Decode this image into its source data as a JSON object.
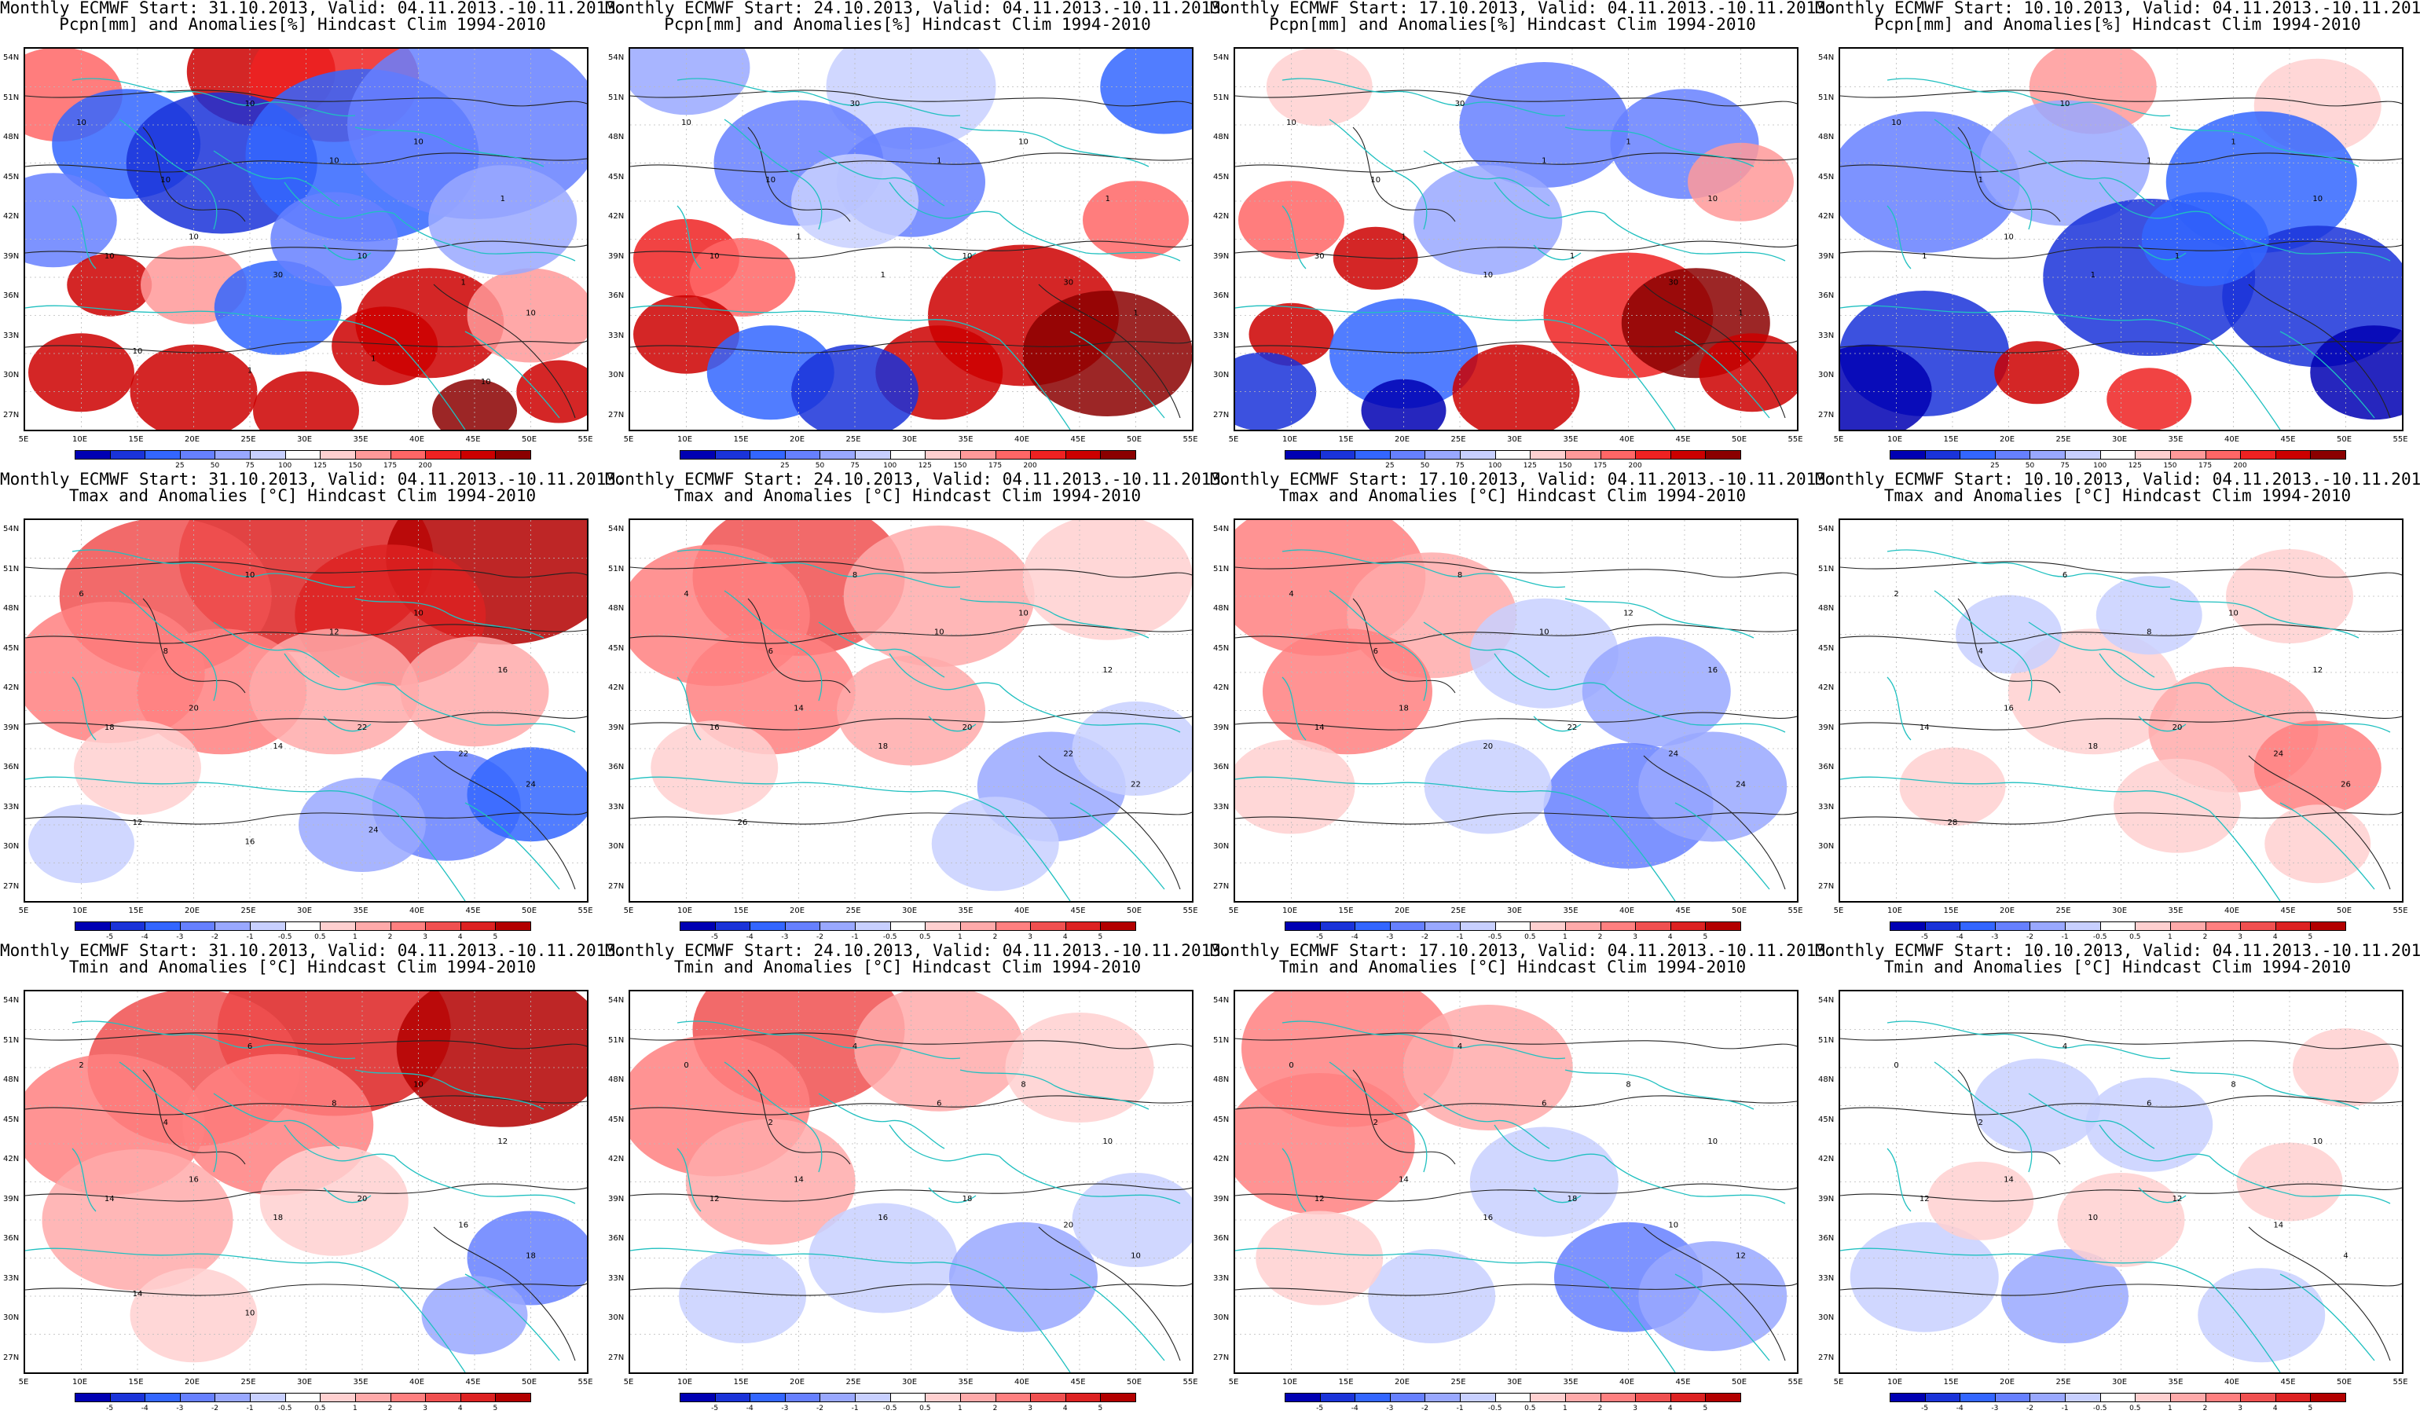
{
  "rows": [
    {
      "variable": "Pcpn[mm] and Anomalies[%] Hindcast Clim 1994-2010",
      "type": "precip",
      "colorbar": {
        "colors": [
          "#0000b3",
          "#1a33d9",
          "#3366ff",
          "#6680ff",
          "#99a8ff",
          "#c8d0ff",
          "#ffffff",
          "#ffd0d0",
          "#ff9999",
          "#ff6666",
          "#ee2222",
          "#cc0000",
          "#8b0000"
        ],
        "labels": [
          "25",
          "50",
          "75",
          "100",
          "125",
          "150",
          "175",
          "200"
        ]
      }
    },
    {
      "variable": "Tmax and Anomalies [°C] Hindcast Clim 1994-2010",
      "type": "tmax",
      "colorbar": {
        "colors": [
          "#0000b3",
          "#1a33d9",
          "#3366ff",
          "#6680ff",
          "#99a8ff",
          "#c8d0ff",
          "#ffffff",
          "#ffd0d0",
          "#ffaaaa",
          "#ff8080",
          "#f05050",
          "#dd2222",
          "#b30000"
        ],
        "labels": [
          "-5",
          "-4",
          "-3",
          "-2",
          "-1",
          "-0.5",
          "0.5",
          "1",
          "2",
          "3",
          "4",
          "5"
        ]
      }
    },
    {
      "variable": "Tmin and Anomalies [°C] Hindcast Clim 1994-2010",
      "type": "tmin",
      "colorbar": {
        "colors": [
          "#0000b3",
          "#1a33d9",
          "#3366ff",
          "#6680ff",
          "#99a8ff",
          "#c8d0ff",
          "#ffffff",
          "#ffd0d0",
          "#ffaaaa",
          "#ff8080",
          "#f05050",
          "#dd2222",
          "#b30000"
        ],
        "labels": [
          "-5",
          "-4",
          "-3",
          "-2",
          "-1",
          "-0.5",
          "0.5",
          "1",
          "2",
          "3",
          "4",
          "5"
        ]
      }
    }
  ],
  "columns": [
    {
      "start": "31.10.2013",
      "title_prefix": "Monthly ECMWF Start: 31.10.2013, Valid: 04.11.2013.-10.11.2013."
    },
    {
      "start": "24.10.2013",
      "title_prefix": "Monthly ECMWF Start: 24.10.2013, Valid: 04.11.2013.-10.11.2013."
    },
    {
      "start": "17.10.2013",
      "title_prefix": "Monthly ECMWF Start: 17.10.2013, Valid: 04.11.2013.-10.11.2013."
    },
    {
      "start": "10.10.2013",
      "title_prefix": "Monthly ECMWF Start: 10.10.2013, Valid: 04.11.2013.-10.11.2013."
    }
  ],
  "lat_labels": [
    "54N",
    "51N",
    "48N",
    "45N",
    "42N",
    "39N",
    "36N",
    "33N",
    "30N",
    "27N"
  ],
  "lon_labels": [
    "5E",
    "10E",
    "15E",
    "20E",
    "25E",
    "30E",
    "35E",
    "40E",
    "45E",
    "50E",
    "55E"
  ],
  "panels": [
    [
      {
        "contour_labels": [
          "10",
          "10",
          "10",
          "10",
          "10",
          "1",
          "10",
          "10",
          "30",
          "10",
          "1",
          "10",
          "10",
          "1",
          "1",
          "10"
        ],
        "palette_idx": [
          0
        ]
      },
      {
        "contour_labels": [
          "10",
          "10",
          "30",
          "1",
          "10",
          "1",
          "10",
          "1",
          "1",
          "10",
          "30",
          "1"
        ]
      },
      {
        "contour_labels": [
          "10",
          "10",
          "30",
          "1",
          "1",
          "10",
          "30",
          "1",
          "10",
          "1",
          "30",
          "1"
        ]
      },
      {
        "contour_labels": [
          "10",
          "1",
          "10",
          "1",
          "1",
          "10",
          "1",
          "10",
          "1",
          "1"
        ]
      }
    ],
    [
      {
        "contour_labels": [
          "6",
          "8",
          "10",
          "12",
          "10",
          "16",
          "18",
          "20",
          "14",
          "22",
          "22",
          "24",
          "12",
          "16",
          "24"
        ]
      },
      {
        "contour_labels": [
          "4",
          "6",
          "8",
          "10",
          "10",
          "12",
          "16",
          "14",
          "18",
          "20",
          "22",
          "22",
          "26"
        ]
      },
      {
        "contour_labels": [
          "4",
          "6",
          "8",
          "10",
          "12",
          "16",
          "14",
          "18",
          "20",
          "22",
          "24",
          "24"
        ]
      },
      {
        "contour_labels": [
          "2",
          "4",
          "6",
          "8",
          "10",
          "12",
          "14",
          "16",
          "18",
          "20",
          "24",
          "26",
          "28"
        ]
      }
    ],
    [
      {
        "contour_labels": [
          "2",
          "4",
          "6",
          "8",
          "10",
          "12",
          "14",
          "16",
          "18",
          "20",
          "16",
          "18",
          "14",
          "10"
        ]
      },
      {
        "contour_labels": [
          "0",
          "2",
          "4",
          "6",
          "8",
          "10",
          "12",
          "14",
          "16",
          "18",
          "20",
          "10"
        ]
      },
      {
        "contour_labels": [
          "0",
          "2",
          "4",
          "6",
          "8",
          "10",
          "12",
          "14",
          "16",
          "18",
          "10",
          "12"
        ]
      },
      {
        "contour_labels": [
          "0",
          "2",
          "4",
          "6",
          "8",
          "10",
          "12",
          "14",
          "10",
          "12",
          "14",
          "4"
        ]
      }
    ]
  ],
  "anomaly_fields": {
    "precip": [
      [
        [
          0.06,
          0.12,
          "#ff6666",
          60
        ],
        [
          0.42,
          0.06,
          "#cc0000",
          70
        ],
        [
          0.55,
          0.08,
          "#ee2222",
          80
        ],
        [
          0.18,
          0.25,
          "#3366ff",
          70
        ],
        [
          0.35,
          0.3,
          "#1a33d9",
          90
        ],
        [
          0.6,
          0.28,
          "#3366ff",
          110
        ],
        [
          0.8,
          0.2,
          "#6680ff",
          120
        ],
        [
          0.05,
          0.45,
          "#6680ff",
          60
        ],
        [
          0.15,
          0.62,
          "#cc0000",
          40
        ],
        [
          0.3,
          0.62,
          "#ff9999",
          50
        ],
        [
          0.45,
          0.68,
          "#3366ff",
          60
        ],
        [
          0.72,
          0.72,
          "#cc0000",
          70
        ],
        [
          0.64,
          0.78,
          "#cc0000",
          50
        ],
        [
          0.9,
          0.7,
          "#ff9999",
          60
        ],
        [
          0.1,
          0.85,
          "#cc0000",
          50
        ],
        [
          0.3,
          0.9,
          "#cc0000",
          60
        ],
        [
          0.5,
          0.95,
          "#cc0000",
          50
        ],
        [
          0.8,
          0.95,
          "#8b0000",
          40
        ],
        [
          0.95,
          0.9,
          "#cc0000",
          40
        ],
        [
          0.55,
          0.5,
          "#6680ff",
          60
        ],
        [
          0.85,
          0.45,
          "#99a8ff",
          70
        ]
      ],
      [
        [
          0.1,
          0.05,
          "#99a8ff",
          60
        ],
        [
          0.5,
          0.1,
          "#c8d0ff",
          80
        ],
        [
          0.95,
          0.1,
          "#3366ff",
          60
        ],
        [
          0.3,
          0.3,
          "#6680ff",
          80
        ],
        [
          0.5,
          0.35,
          "#6680ff",
          70
        ],
        [
          0.1,
          0.55,
          "#ee2222",
          50
        ],
        [
          0.2,
          0.6,
          "#ff6666",
          50
        ],
        [
          0.7,
          0.7,
          "#cc0000",
          90
        ],
        [
          0.85,
          0.8,
          "#8b0000",
          80
        ],
        [
          0.55,
          0.85,
          "#cc0000",
          60
        ],
        [
          0.1,
          0.75,
          "#cc0000",
          50
        ],
        [
          0.25,
          0.85,
          "#3366ff",
          60
        ],
        [
          0.4,
          0.9,
          "#1a33d9",
          60
        ],
        [
          0.4,
          0.4,
          "#c8d0ff",
          60
        ],
        [
          0.9,
          0.45,
          "#ff6666",
          50
        ]
      ],
      [
        [
          0.15,
          0.1,
          "#ffd0d0",
          50
        ],
        [
          0.55,
          0.2,
          "#6680ff",
          80
        ],
        [
          0.8,
          0.25,
          "#6680ff",
          70
        ],
        [
          0.1,
          0.45,
          "#ff6666",
          50
        ],
        [
          0.25,
          0.55,
          "#cc0000",
          40
        ],
        [
          0.1,
          0.75,
          "#cc0000",
          40
        ],
        [
          0.3,
          0.8,
          "#3366ff",
          70
        ],
        [
          0.5,
          0.9,
          "#cc0000",
          60
        ],
        [
          0.7,
          0.7,
          "#ee2222",
          80
        ],
        [
          0.82,
          0.72,
          "#8b0000",
          70
        ],
        [
          0.92,
          0.85,
          "#cc0000",
          50
        ],
        [
          0.45,
          0.45,
          "#99a8ff",
          70
        ],
        [
          0.9,
          0.35,
          "#ff9999",
          50
        ],
        [
          0.05,
          0.9,
          "#1a33d9",
          50
        ],
        [
          0.3,
          0.95,
          "#0000b3",
          40
        ]
      ],
      [
        [
          0.45,
          0.1,
          "#ff9999",
          60
        ],
        [
          0.85,
          0.15,
          "#ffd0d0",
          60
        ],
        [
          0.15,
          0.35,
          "#6680ff",
          90
        ],
        [
          0.4,
          0.3,
          "#99a8ff",
          80
        ],
        [
          0.75,
          0.35,
          "#3366ff",
          90
        ],
        [
          0.55,
          0.6,
          "#1a33d9",
          100
        ],
        [
          0.85,
          0.65,
          "#1a33d9",
          90
        ],
        [
          0.15,
          0.8,
          "#1a33d9",
          80
        ],
        [
          0.05,
          0.9,
          "#0000b3",
          60
        ],
        [
          0.35,
          0.85,
          "#cc0000",
          40
        ],
        [
          0.55,
          0.92,
          "#ee2222",
          40
        ],
        [
          0.95,
          0.85,
          "#0000b3",
          60
        ],
        [
          0.65,
          0.5,
          "#3366ff",
          60
        ]
      ]
    ],
    "tmax": [
      [
        [
          0.5,
          0.1,
          "#dd2222",
          120
        ],
        [
          0.85,
          0.1,
          "#b30000",
          110
        ],
        [
          0.25,
          0.2,
          "#f05050",
          100
        ],
        [
          0.65,
          0.25,
          "#dd2222",
          90
        ],
        [
          0.15,
          0.4,
          "#ff8080",
          90
        ],
        [
          0.35,
          0.45,
          "#ff8080",
          80
        ],
        [
          0.55,
          0.45,
          "#ffaaaa",
          80
        ],
        [
          0.8,
          0.45,
          "#ffaaaa",
          70
        ],
        [
          0.75,
          0.75,
          "#6680ff",
          70
        ],
        [
          0.9,
          0.72,
          "#3366ff",
          60
        ],
        [
          0.6,
          0.8,
          "#99a8ff",
          60
        ],
        [
          0.1,
          0.85,
          "#c8d0ff",
          50
        ],
        [
          0.2,
          0.65,
          "#ffd0d0",
          60
        ]
      ],
      [
        [
          0.3,
          0.15,
          "#f05050",
          100
        ],
        [
          0.15,
          0.25,
          "#ff8080",
          90
        ],
        [
          0.55,
          0.2,
          "#ffaaaa",
          90
        ],
        [
          0.85,
          0.15,
          "#ffd0d0",
          80
        ],
        [
          0.25,
          0.45,
          "#ff8080",
          80
        ],
        [
          0.5,
          0.5,
          "#ffaaaa",
          70
        ],
        [
          0.75,
          0.7,
          "#99a8ff",
          70
        ],
        [
          0.9,
          0.6,
          "#c8d0ff",
          60
        ],
        [
          0.65,
          0.85,
          "#c8d0ff",
          60
        ],
        [
          0.15,
          0.65,
          "#ffd0d0",
          60
        ]
      ],
      [
        [
          0.15,
          0.15,
          "#ff8080",
          100
        ],
        [
          0.35,
          0.25,
          "#ffaaaa",
          80
        ],
        [
          0.2,
          0.45,
          "#ff8080",
          80
        ],
        [
          0.55,
          0.35,
          "#c8d0ff",
          70
        ],
        [
          0.75,
          0.45,
          "#99a8ff",
          70
        ],
        [
          0.7,
          0.75,
          "#6680ff",
          80
        ],
        [
          0.85,
          0.7,
          "#99a8ff",
          70
        ],
        [
          0.45,
          0.7,
          "#c8d0ff",
          60
        ],
        [
          0.1,
          0.7,
          "#ffd0d0",
          60
        ]
      ],
      [
        [
          0.45,
          0.45,
          "#ffd0d0",
          80
        ],
        [
          0.7,
          0.55,
          "#ffaaaa",
          80
        ],
        [
          0.85,
          0.65,
          "#ff8080",
          60
        ],
        [
          0.3,
          0.3,
          "#c8d0ff",
          50
        ],
        [
          0.55,
          0.25,
          "#c8d0ff",
          50
        ],
        [
          0.8,
          0.2,
          "#ffd0d0",
          60
        ],
        [
          0.2,
          0.7,
          "#ffd0d0",
          50
        ],
        [
          0.6,
          0.75,
          "#ffd0d0",
          60
        ],
        [
          0.85,
          0.85,
          "#ffd0d0",
          50
        ]
      ]
    ],
    "tmin": [
      [
        [
          0.55,
          0.1,
          "#dd2222",
          110
        ],
        [
          0.85,
          0.15,
          "#b30000",
          100
        ],
        [
          0.3,
          0.2,
          "#f05050",
          100
        ],
        [
          0.15,
          0.35,
          "#ff8080",
          90
        ],
        [
          0.45,
          0.35,
          "#ff8080",
          90
        ],
        [
          0.2,
          0.6,
          "#ffaaaa",
          90
        ],
        [
          0.55,
          0.55,
          "#ffd0d0",
          70
        ],
        [
          0.9,
          0.7,
          "#6680ff",
          60
        ],
        [
          0.8,
          0.85,
          "#99a8ff",
          50
        ],
        [
          0.3,
          0.85,
          "#ffd0d0",
          60
        ]
      ],
      [
        [
          0.3,
          0.1,
          "#f05050",
          100
        ],
        [
          0.15,
          0.3,
          "#ff8080",
          90
        ],
        [
          0.55,
          0.15,
          "#ffaaaa",
          80
        ],
        [
          0.25,
          0.5,
          "#ffaaaa",
          80
        ],
        [
          0.45,
          0.7,
          "#c8d0ff",
          70
        ],
        [
          0.7,
          0.75,
          "#99a8ff",
          70
        ],
        [
          0.9,
          0.6,
          "#c8d0ff",
          60
        ],
        [
          0.2,
          0.8,
          "#c8d0ff",
          60
        ],
        [
          0.8,
          0.2,
          "#ffd0d0",
          70
        ]
      ],
      [
        [
          0.2,
          0.15,
          "#ff8080",
          100
        ],
        [
          0.45,
          0.2,
          "#ffaaaa",
          80
        ],
        [
          0.15,
          0.4,
          "#ff8080",
          90
        ],
        [
          0.55,
          0.5,
          "#c8d0ff",
          70
        ],
        [
          0.7,
          0.75,
          "#6680ff",
          70
        ],
        [
          0.85,
          0.8,
          "#99a8ff",
          70
        ],
        [
          0.35,
          0.8,
          "#c8d0ff",
          60
        ],
        [
          0.15,
          0.7,
          "#ffd0d0",
          60
        ]
      ],
      [
        [
          0.35,
          0.3,
          "#c8d0ff",
          60
        ],
        [
          0.55,
          0.35,
          "#c8d0ff",
          60
        ],
        [
          0.15,
          0.75,
          "#c8d0ff",
          70
        ],
        [
          0.4,
          0.8,
          "#99a8ff",
          60
        ],
        [
          0.75,
          0.85,
          "#c8d0ff",
          60
        ],
        [
          0.5,
          0.6,
          "#ffd0d0",
          60
        ],
        [
          0.8,
          0.5,
          "#ffd0d0",
          50
        ],
        [
          0.25,
          0.55,
          "#ffd0d0",
          50
        ],
        [
          0.9,
          0.2,
          "#ffd0d0",
          50
        ]
      ]
    ]
  }
}
